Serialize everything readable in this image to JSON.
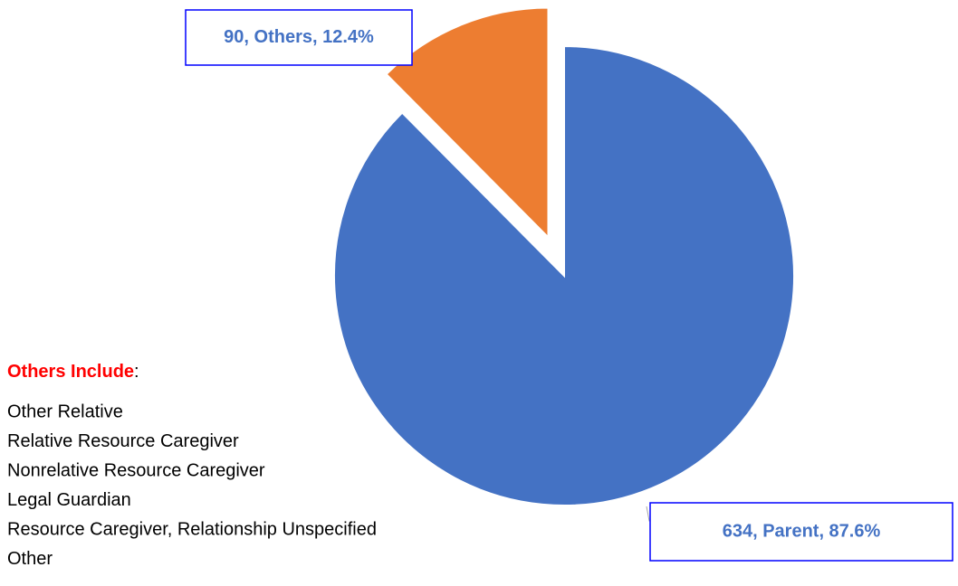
{
  "chart_data": {
    "type": "pie",
    "categories": [
      "Parent",
      "Others"
    ],
    "values": [
      634,
      90
    ],
    "value_labels": [
      "634, Parent, 87.6%",
      "90, Others, 12.4%"
    ],
    "colors": [
      "#4472c4",
      "#ed7d31"
    ],
    "explode": [
      false,
      true
    ],
    "note": {
      "title": "Others Include",
      "separator": ":",
      "items": [
        "Other Relative",
        "Relative Resource Caregiver",
        "Nonrelative Resource Caregiver",
        "Legal Guardian",
        "Resource Caregiver, Relationship Unspecified",
        "Other"
      ]
    }
  }
}
